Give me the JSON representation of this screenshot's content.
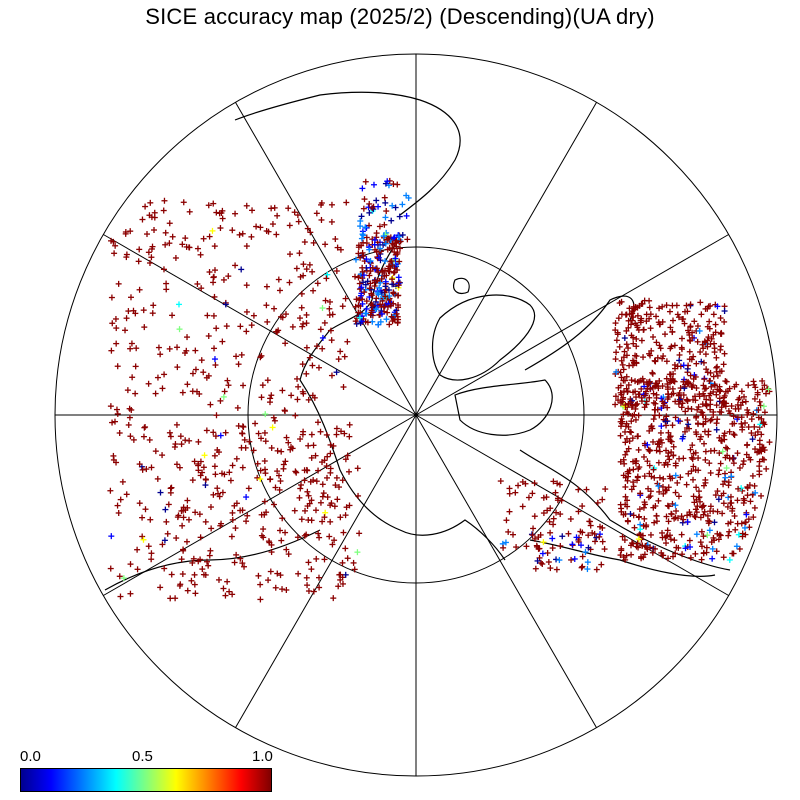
{
  "title": "SICE accuracy map (2025/2) (Descending)(UA dry)",
  "colorbar": {
    "ticks": [
      "0.0",
      "0.5",
      "1.0"
    ],
    "colors": [
      "#00008f",
      "#0000ff",
      "#0080ff",
      "#00ffff",
      "#80ff80",
      "#ffff00",
      "#ff8000",
      "#ff0000",
      "#800000"
    ]
  },
  "map": {
    "projection": "polar stereographic (north)",
    "meridian_spacing_deg": 30,
    "inner_circle": "latitude circle",
    "marker": "+",
    "dominant_marker_color": "#8b0000"
  }
}
